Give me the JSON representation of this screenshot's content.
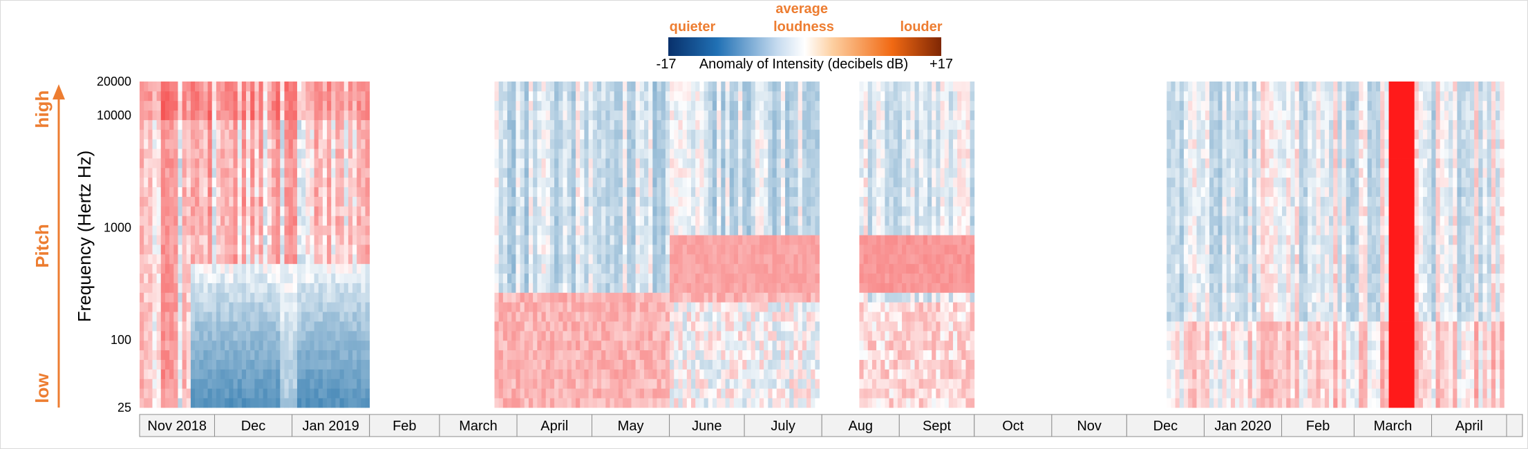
{
  "chart_data": {
    "type": "heatmap",
    "title": "",
    "xlabel": "",
    "ylabel": "Frequency (Hertz Hz)",
    "y_scale": "log",
    "ylim": [
      25,
      20000
    ],
    "y_ticks": [
      20000,
      10000,
      1000,
      100,
      25
    ],
    "months": [
      "Nov 2018",
      "Dec",
      "Jan 2019",
      "Feb",
      "March",
      "April",
      "May",
      "June",
      "July",
      "Aug",
      "Sept",
      "Oct",
      "Nov",
      "Dec",
      "Jan 2020",
      "Feb",
      "March",
      "April",
      ""
    ],
    "x_start": "2018-11-01",
    "x_end": "2020-04-30",
    "recording_periods": [
      {
        "start": "2018-11-01",
        "end": "2019-02-01",
        "dec_jan_low_freq_anomaly_db": -12
      },
      {
        "start": "2019-03-23",
        "end": "2019-07-31",
        "summer_mid_freq_anomaly_db": 5
      },
      {
        "start": "2019-08-16",
        "end": "2019-10-01",
        "summer_mid_freq_anomaly_db": 6
      },
      {
        "start": "2019-12-17",
        "end": "2020-04-30",
        "march_spike_date": "2020-03-20",
        "march_spike_anomaly_db": 17
      }
    ],
    "colorbar": {
      "min": -17,
      "max": 17,
      "label": "Anomaly of Intensity (decibels dB)",
      "min_label": "-17",
      "max_label": "+17",
      "low_text": "quieter",
      "mid_text": "average loudness",
      "high_text": "louder",
      "colors": [
        "#08306b",
        "#2171b5",
        "#c6dbef",
        "#ffffff",
        "#fdd0a2",
        "#f16913",
        "#7f2704"
      ]
    },
    "cell_colors": {
      "cool": "#1f6fa8",
      "warm": "#f21c1c",
      "spike": "#ff1a1a"
    },
    "pitch_axis": {
      "title": "Pitch",
      "high": "high",
      "low": "low",
      "color": "#ED7D31"
    }
  }
}
